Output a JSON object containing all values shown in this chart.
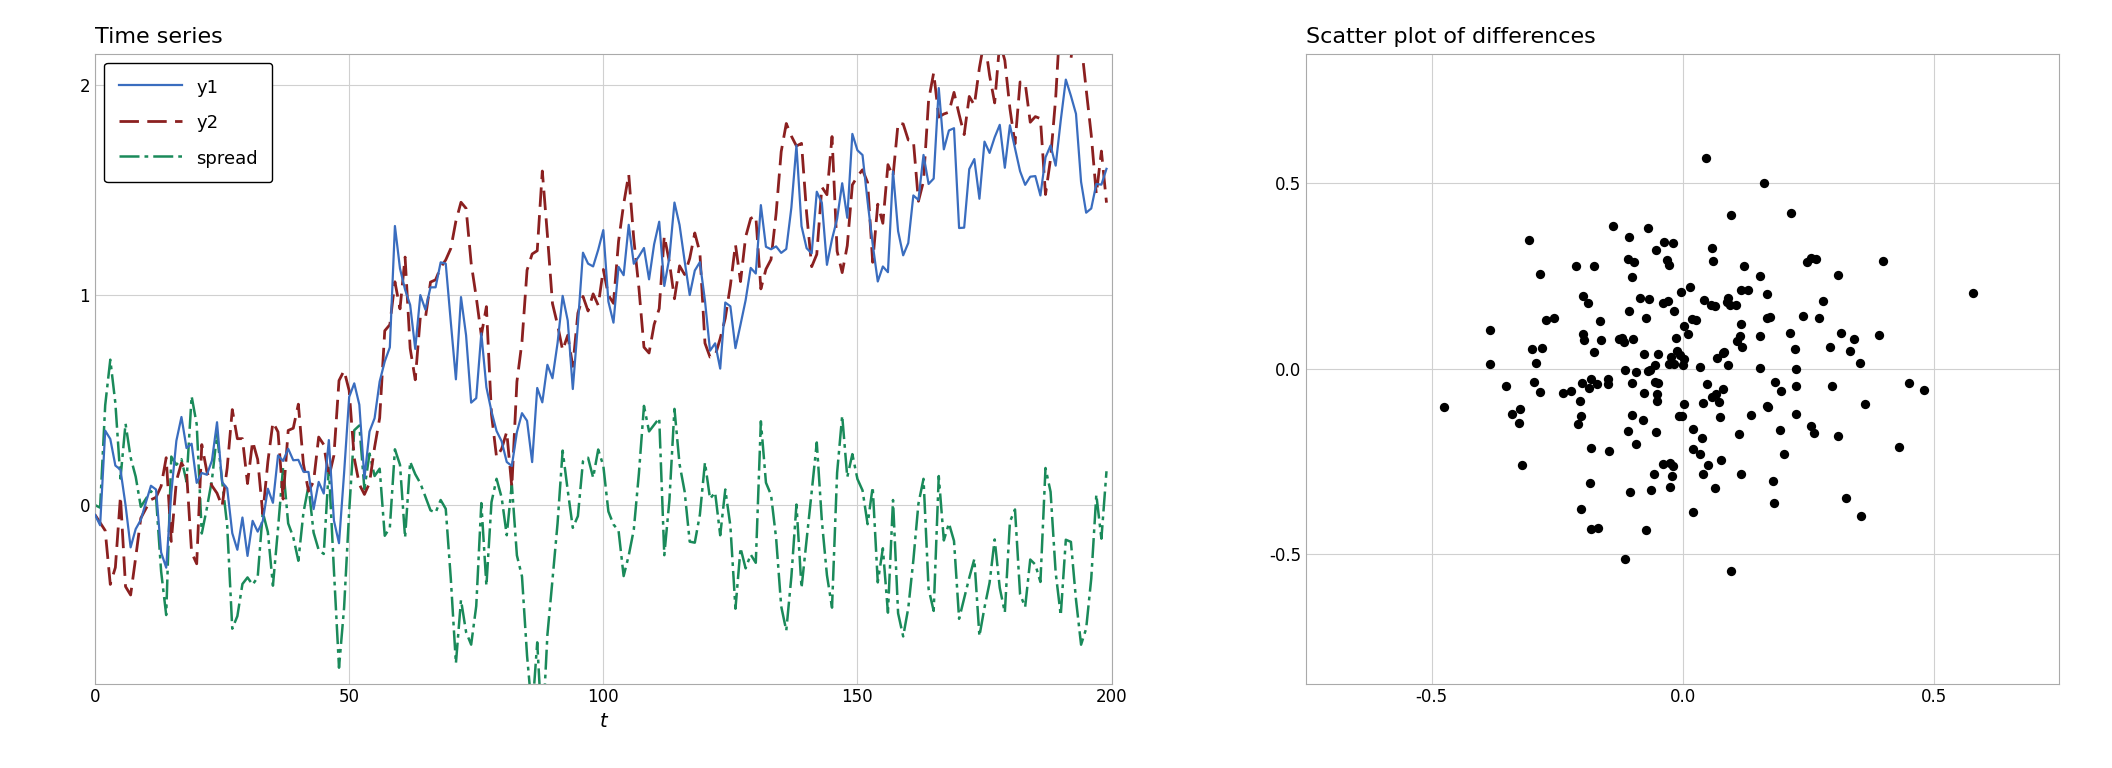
{
  "title_left": "Time series",
  "title_right": "Scatter plot of differences",
  "xlabel_left": "t",
  "n": 200,
  "seed": 123,
  "line_y1_color": "#3a6dbf",
  "line_y2_color": "#8b2020",
  "line_spread_color": "#1a8a5a",
  "y1_label": "y1",
  "y2_label": "y2",
  "spread_label": "spread",
  "scatter_color": "black",
  "background_color": "#ffffff",
  "grid_color": "#d0d0d0",
  "ylim_left": [
    -0.85,
    2.15
  ],
  "xlim_left": [
    0,
    200
  ],
  "scatter_xlim": [
    -0.75,
    0.75
  ],
  "scatter_ylim": [
    -0.85,
    0.85
  ],
  "title_fontsize": 16,
  "label_fontsize": 14,
  "tick_fontsize": 12,
  "legend_fontsize": 13
}
